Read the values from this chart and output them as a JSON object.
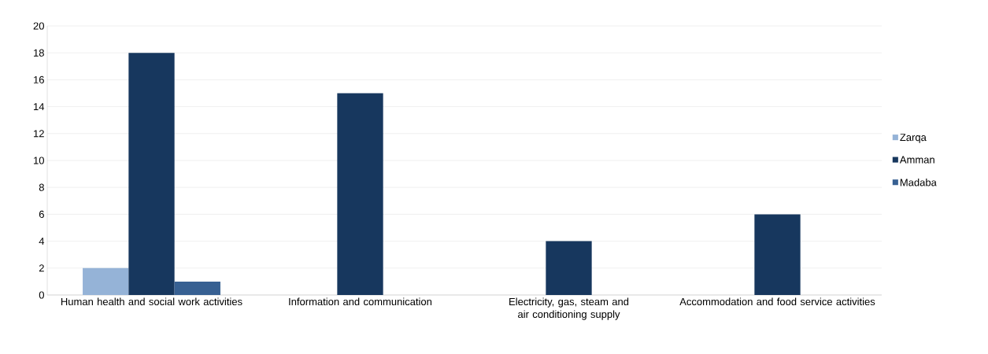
{
  "chart_data": {
    "type": "bar",
    "categories": [
      "Human health and social work activities",
      "Information and communication",
      "Electricity, gas, steam and air conditioning supply",
      "Accommodation and food service activities"
    ],
    "series": [
      {
        "name": "Zarqa",
        "color": "#95b3d7",
        "values": [
          2,
          0,
          0,
          0
        ]
      },
      {
        "name": "Amman",
        "color": "#17375e",
        "values": [
          18,
          15,
          4,
          6
        ]
      },
      {
        "name": "Madaba",
        "color": "#376092",
        "values": [
          1,
          0,
          0,
          0
        ]
      }
    ],
    "ylim": [
      0,
      20
    ],
    "yticks": [
      0,
      2,
      4,
      6,
      8,
      10,
      12,
      14,
      16,
      18,
      20
    ],
    "grid": "y",
    "legend": "right"
  }
}
